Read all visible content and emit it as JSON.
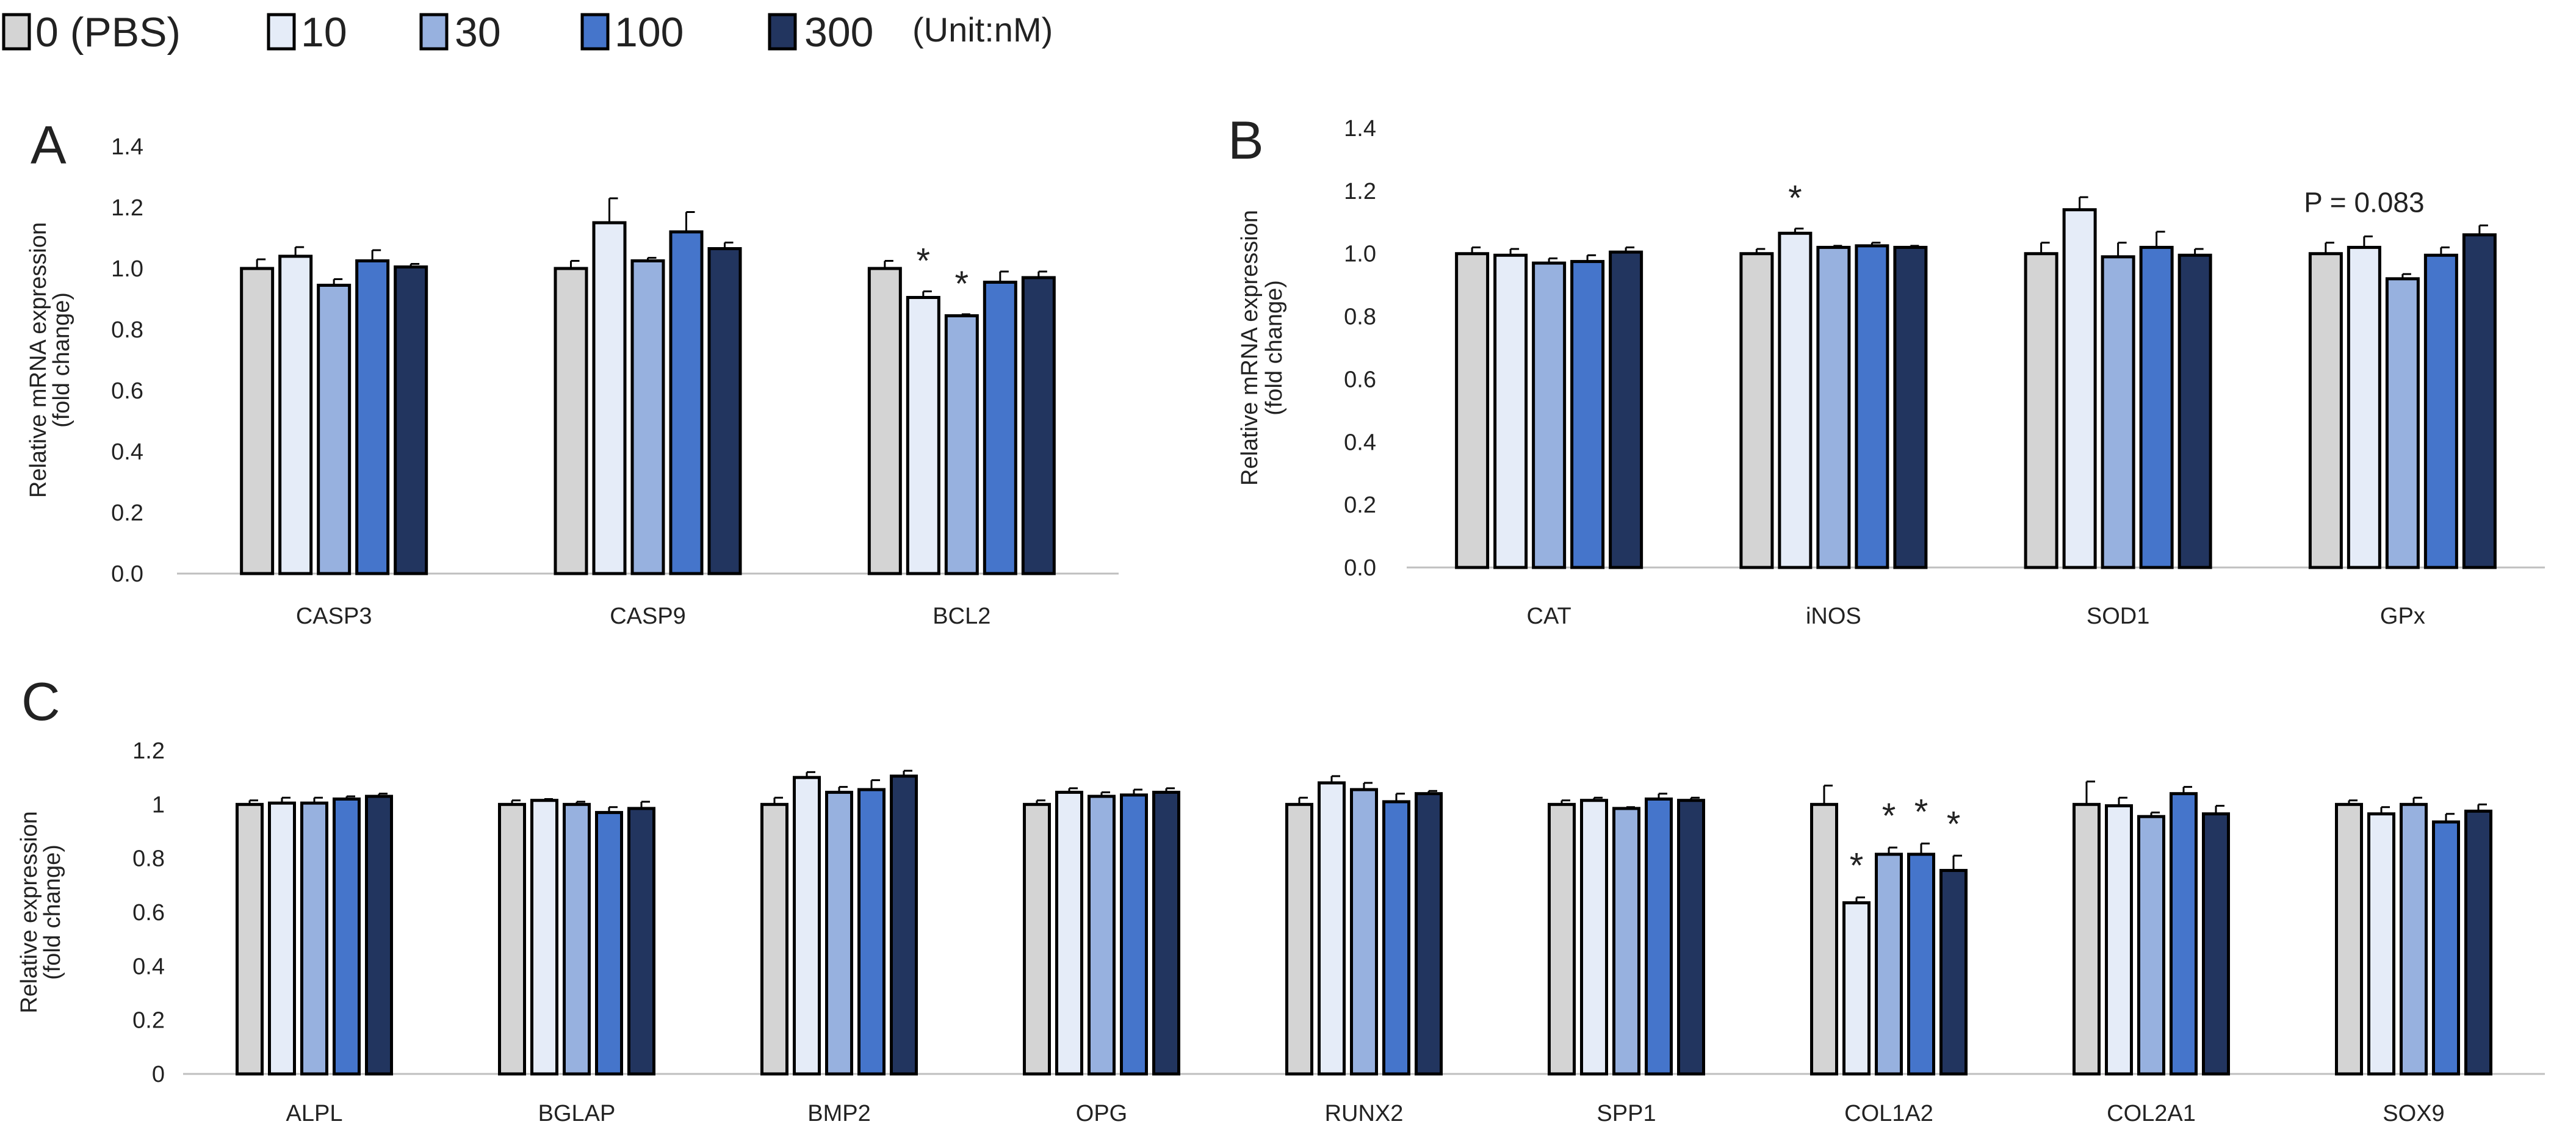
{
  "colors": {
    "groups": [
      "#d4d4d4",
      "#e5ecf8",
      "#97b1df",
      "#4575cb",
      "#22355f"
    ],
    "outline": "#000000",
    "axis": "#bfbfbf",
    "text": "#222222"
  },
  "legend": {
    "items": [
      "0 (PBS)",
      "10",
      "30",
      "100",
      "300"
    ],
    "unit": "(Unit:nM)"
  },
  "chart_data": [
    {
      "panel": "A",
      "type": "bar",
      "title": "",
      "xlabel": "",
      "ylabel": [
        "Relative mRNA expression",
        "(fold change)"
      ],
      "ylim": [
        0,
        1.4
      ],
      "yticks": [
        "0.0",
        "0.2",
        "0.4",
        "0.6",
        "0.8",
        "1.0",
        "1.2",
        "1.4"
      ],
      "grid": false,
      "categories": [
        "CASP3",
        "CASP9",
        "BCL2"
      ],
      "series": [
        {
          "name": "0 (PBS)",
          "values": [
            1.0,
            1.0,
            1.0
          ],
          "errors": [
            0.03,
            0.025,
            0.025
          ]
        },
        {
          "name": "10",
          "values": [
            1.04,
            1.15,
            0.905
          ],
          "errors": [
            0.03,
            0.08,
            0.02
          ]
        },
        {
          "name": "30",
          "values": [
            0.945,
            1.025,
            0.845
          ],
          "errors": [
            0.02,
            0.01,
            0.005
          ]
        },
        {
          "name": "100",
          "values": [
            1.025,
            1.12,
            0.955
          ],
          "errors": [
            0.035,
            0.065,
            0.035
          ]
        },
        {
          "name": "300",
          "values": [
            1.005,
            1.065,
            0.97
          ],
          "errors": [
            0.01,
            0.02,
            0.02
          ]
        }
      ],
      "annotations": [
        {
          "category": "BCL2",
          "series": "10",
          "text": "*"
        },
        {
          "category": "BCL2",
          "series": "30",
          "text": "*"
        }
      ]
    },
    {
      "panel": "B",
      "type": "bar",
      "title": "",
      "xlabel": "",
      "ylabel": [
        "Relative mRNA expression",
        "(fold change)"
      ],
      "ylim": [
        0,
        1.4
      ],
      "yticks": [
        "0.0",
        "0.2",
        "0.4",
        "0.6",
        "0.8",
        "1.0",
        "1.2",
        "1.4"
      ],
      "grid": false,
      "categories": [
        "CAT",
        "iNOS",
        "SOD1",
        "GPx"
      ],
      "series": [
        {
          "name": "0 (PBS)",
          "values": [
            1.0,
            1.0,
            1.0,
            1.0
          ],
          "errors": [
            0.02,
            0.015,
            0.035,
            0.035
          ]
        },
        {
          "name": "10",
          "values": [
            0.995,
            1.065,
            1.14,
            1.02
          ],
          "errors": [
            0.02,
            0.015,
            0.04,
            0.035
          ]
        },
        {
          "name": "30",
          "values": [
            0.97,
            1.02,
            0.99,
            0.92
          ],
          "errors": [
            0.015,
            0.005,
            0.045,
            0.015
          ]
        },
        {
          "name": "100",
          "values": [
            0.975,
            1.025,
            1.02,
            0.995
          ],
          "errors": [
            0.02,
            0.01,
            0.05,
            0.025
          ]
        },
        {
          "name": "300",
          "values": [
            1.005,
            1.02,
            0.995,
            1.06
          ],
          "errors": [
            0.015,
            0.005,
            0.02,
            0.03
          ]
        }
      ],
      "annotations": [
        {
          "category": "iNOS",
          "series": "10",
          "text": "*"
        },
        {
          "category": "GPx",
          "series": "10",
          "text": "P = 0.083"
        }
      ]
    },
    {
      "panel": "C",
      "type": "bar",
      "title": "",
      "xlabel": "",
      "ylabel": [
        "Relative expression",
        "(fold change)"
      ],
      "ylim": [
        0,
        1.2
      ],
      "yticks": [
        "0",
        "0.2",
        "0.4",
        "0.6",
        "0.8",
        "1",
        "1.2"
      ],
      "grid": false,
      "categories": [
        "ALPL",
        "BGLAP",
        "BMP2",
        "OPG",
        "RUNX2",
        "SPP1",
        "COL1A2",
        "COL2A1",
        "SOX9"
      ],
      "series": [
        {
          "name": "0 (PBS)",
          "values": [
            1.0,
            1.0,
            1.0,
            1.0,
            1.0,
            1.0,
            1.0,
            1.0,
            1.0
          ],
          "errors": [
            0.015,
            0.015,
            0.025,
            0.015,
            0.025,
            0.015,
            0.07,
            0.085,
            0.015
          ]
        },
        {
          "name": "10",
          "values": [
            1.005,
            1.015,
            1.1,
            1.045,
            1.08,
            1.015,
            0.635,
            0.995,
            0.965
          ],
          "errors": [
            0.02,
            0.005,
            0.02,
            0.015,
            0.025,
            0.01,
            0.02,
            0.03,
            0.025
          ]
        },
        {
          "name": "30",
          "values": [
            1.005,
            1.0,
            1.045,
            1.03,
            1.055,
            0.985,
            0.815,
            0.955,
            1.0
          ],
          "errors": [
            0.02,
            0.01,
            0.02,
            0.015,
            0.025,
            0.005,
            0.025,
            0.015,
            0.025
          ]
        },
        {
          "name": "100",
          "values": [
            1.02,
            0.97,
            1.055,
            1.035,
            1.01,
            1.02,
            0.815,
            1.04,
            0.935
          ],
          "errors": [
            0.01,
            0.02,
            0.035,
            0.02,
            0.03,
            0.02,
            0.04,
            0.025,
            0.03
          ]
        },
        {
          "name": "300",
          "values": [
            1.03,
            0.985,
            1.105,
            1.045,
            1.04,
            1.015,
            0.755,
            0.965,
            0.975
          ],
          "errors": [
            0.01,
            0.025,
            0.02,
            0.015,
            0.01,
            0.01,
            0.055,
            0.03,
            0.025
          ]
        }
      ],
      "annotations": [
        {
          "category": "COL1A2",
          "series": "10",
          "text": "*"
        },
        {
          "category": "COL1A2",
          "series": "30",
          "text": "*"
        },
        {
          "category": "COL1A2",
          "series": "100",
          "text": "*"
        },
        {
          "category": "COL1A2",
          "series": "300",
          "text": "*"
        }
      ]
    }
  ]
}
